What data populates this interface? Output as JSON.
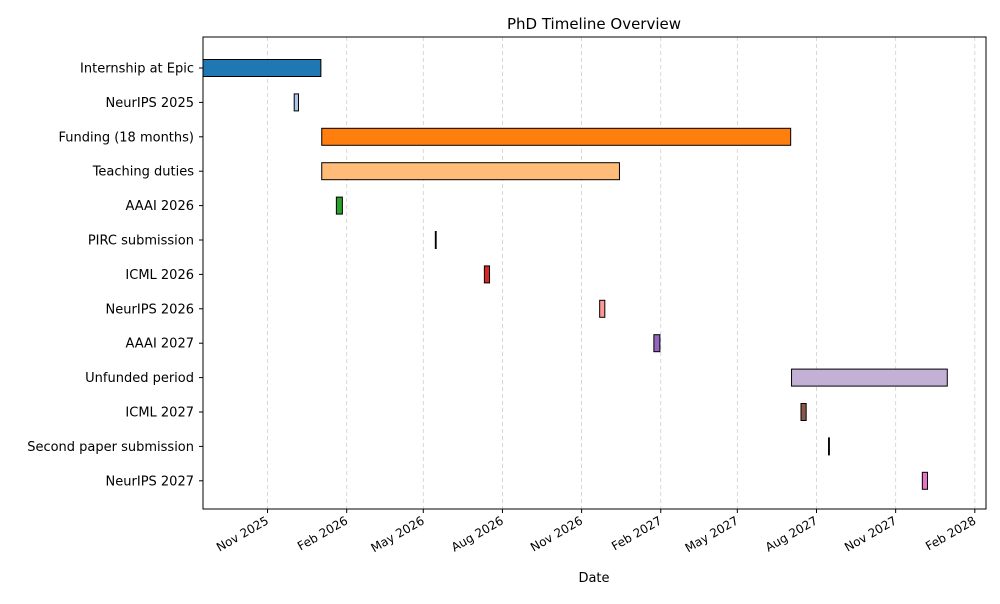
{
  "chart_data": {
    "type": "gantt",
    "title": "PhD Timeline Overview",
    "xlabel": "Date",
    "ylabel": "",
    "grid": {
      "x": true,
      "y": false
    },
    "xlim": [
      "2025-08-18",
      "2028-02-14"
    ],
    "x_ticks": [
      {
        "date": "2025-11-01",
        "label": "Nov 2025"
      },
      {
        "date": "2026-02-01",
        "label": "Feb 2026"
      },
      {
        "date": "2026-05-01",
        "label": "May 2026"
      },
      {
        "date": "2026-08-01",
        "label": "Aug 2026"
      },
      {
        "date": "2026-11-01",
        "label": "Nov 2026"
      },
      {
        "date": "2027-02-01",
        "label": "Feb 2027"
      },
      {
        "date": "2027-05-01",
        "label": "May 2027"
      },
      {
        "date": "2027-08-01",
        "label": "Aug 2027"
      },
      {
        "date": "2027-11-01",
        "label": "Nov 2027"
      },
      {
        "date": "2028-02-01",
        "label": "Feb 2028"
      }
    ],
    "tasks": [
      {
        "label": "Internship at Epic",
        "start": "2025-08-18",
        "end": "2026-01-02",
        "color": "#1f77b4"
      },
      {
        "label": "NeurIPS 2025",
        "start": "2025-12-02",
        "end": "2025-12-07",
        "color": "#aec7e8"
      },
      {
        "label": "Funding (18 months)",
        "start": "2026-01-03",
        "end": "2027-07-02",
        "color": "#ff7f0e"
      },
      {
        "label": "Teaching duties",
        "start": "2026-01-03",
        "end": "2026-12-15",
        "color": "#ffbb78"
      },
      {
        "label": "AAAI 2026",
        "start": "2026-01-20",
        "end": "2026-01-27",
        "color": "#2ca02c"
      },
      {
        "label": "PIRC submission",
        "start": "2026-05-15",
        "end": "2026-05-16",
        "color": "#98df8a"
      },
      {
        "label": "ICML 2026",
        "start": "2026-07-11",
        "end": "2026-07-17",
        "color": "#d62728"
      },
      {
        "label": "NeurIPS 2026",
        "start": "2026-11-22",
        "end": "2026-11-28",
        "color": "#ff9896"
      },
      {
        "label": "AAAI 2027",
        "start": "2027-01-24",
        "end": "2027-01-31",
        "color": "#9467bd"
      },
      {
        "label": "Unfunded period",
        "start": "2027-07-03",
        "end": "2027-12-31",
        "color": "#c5b0d5"
      },
      {
        "label": "ICML 2027",
        "start": "2027-07-14",
        "end": "2027-07-20",
        "color": "#8c564b"
      },
      {
        "label": "Second paper submission",
        "start": "2027-08-15",
        "end": "2027-08-16",
        "color": "#c49c94"
      },
      {
        "label": "NeurIPS 2027",
        "start": "2027-12-02",
        "end": "2027-12-08",
        "color": "#e377c2"
      }
    ]
  }
}
